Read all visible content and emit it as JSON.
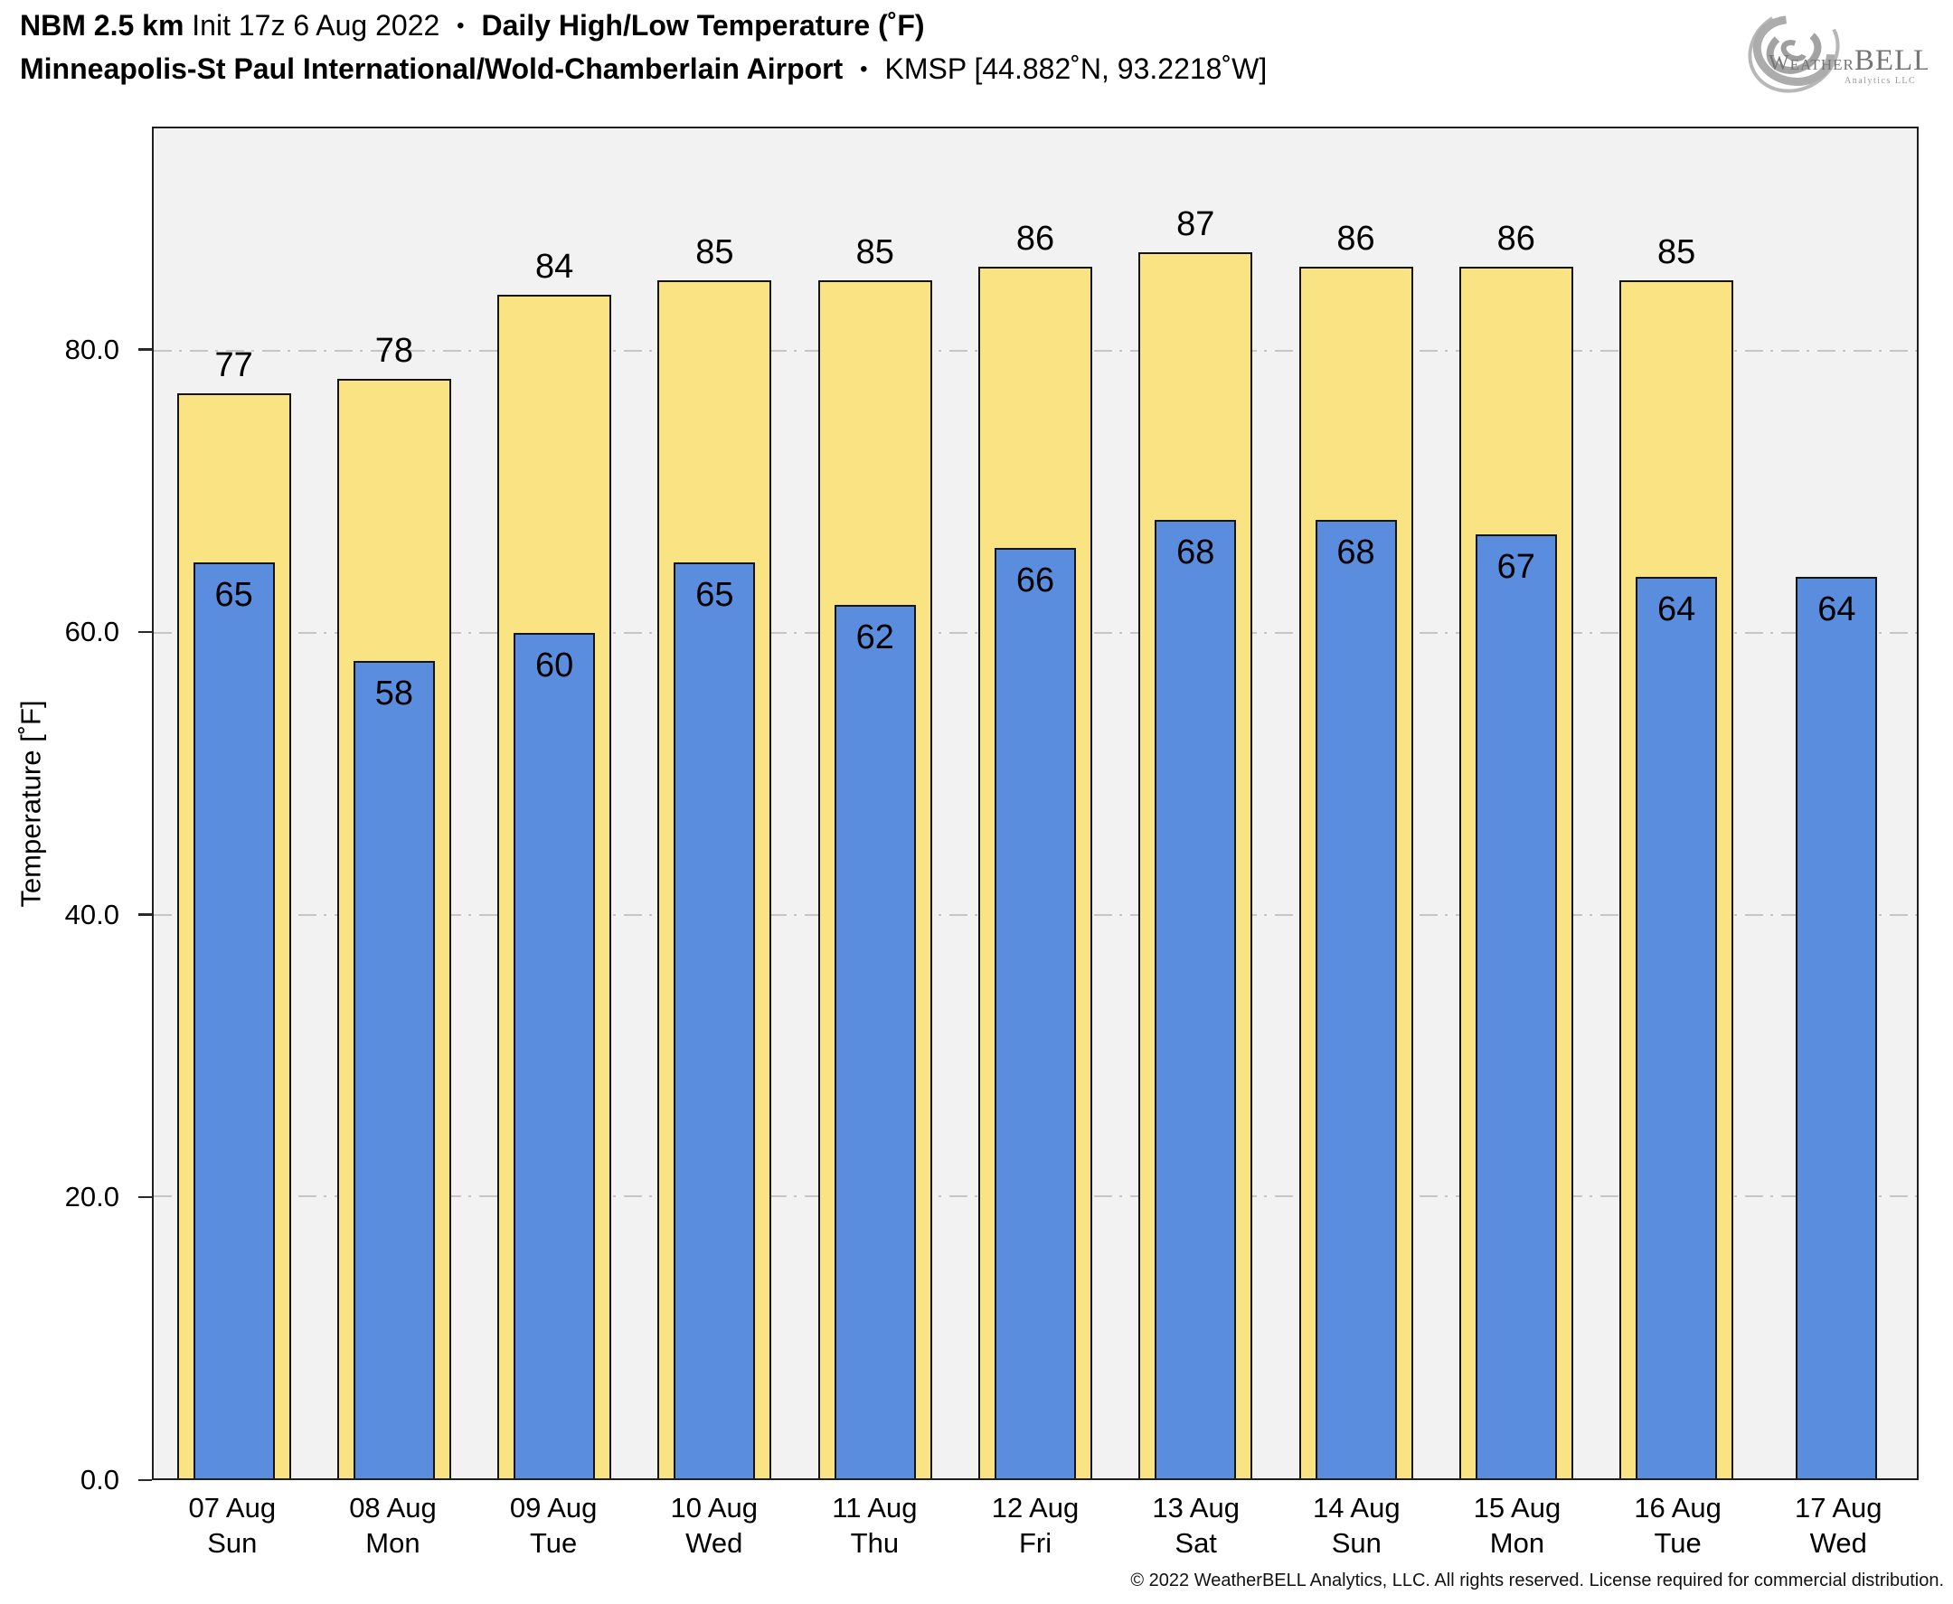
{
  "header": {
    "model": "NBM 2.5 km",
    "init": "Init 17z 6 Aug 2022",
    "sep": "•",
    "product": "Daily High/Low Temperature (˚F)",
    "station": "Minneapolis-St Paul International/Wold-Chamberlain Airport",
    "station_id": "KMSP [44.882˚N, 93.2218˚W]"
  },
  "logo": {
    "brand_weather": "Weather",
    "brand_bell": "BELL",
    "brand_sub": "Analytics LLC"
  },
  "chart_data": {
    "type": "bar",
    "title": "Daily High/Low Temperature (˚F)",
    "ylabel": "Temperature [˚F]",
    "ylim": [
      0,
      95.8
    ],
    "yticks": [
      0.0,
      20.0,
      40.0,
      60.0,
      80.0
    ],
    "ytick_labels": [
      "0.0",
      "20.0",
      "40.0",
      "60.0",
      "80.0"
    ],
    "grid": "horizontal dash-dot gridlines at 20/40/60/80, drawn behind bars",
    "legend_position": "none",
    "categories": [
      {
        "date": "07 Aug",
        "weekday": "Sun"
      },
      {
        "date": "08 Aug",
        "weekday": "Mon"
      },
      {
        "date": "09 Aug",
        "weekday": "Tue"
      },
      {
        "date": "10 Aug",
        "weekday": "Wed"
      },
      {
        "date": "11 Aug",
        "weekday": "Thu"
      },
      {
        "date": "12 Aug",
        "weekday": "Fri"
      },
      {
        "date": "13 Aug",
        "weekday": "Sat"
      },
      {
        "date": "14 Aug",
        "weekday": "Sun"
      },
      {
        "date": "15 Aug",
        "weekday": "Mon"
      },
      {
        "date": "16 Aug",
        "weekday": "Tue"
      },
      {
        "date": "17 Aug",
        "weekday": "Wed"
      }
    ],
    "series": [
      {
        "name": "Daily High",
        "color": "#FAE383",
        "values": [
          77,
          78,
          84,
          85,
          85,
          86,
          87,
          86,
          86,
          85,
          null
        ]
      },
      {
        "name": "Daily Low",
        "color": "#5B8DDE",
        "values": [
          65,
          58,
          60,
          65,
          62,
          66,
          68,
          68,
          67,
          64,
          64
        ]
      }
    ]
  },
  "colors": {
    "high_bar": "#FAE383",
    "low_bar": "#5B8DDE",
    "bar_border": "#141414",
    "plot_background": "#f2f2f2",
    "gridline": "#c6c6c6",
    "logo_gray": "#a6a6a6"
  },
  "footer": {
    "copyright": "© 2022 WeatherBELL Analytics, LLC. All rights reserved. License required for commercial distribution."
  }
}
